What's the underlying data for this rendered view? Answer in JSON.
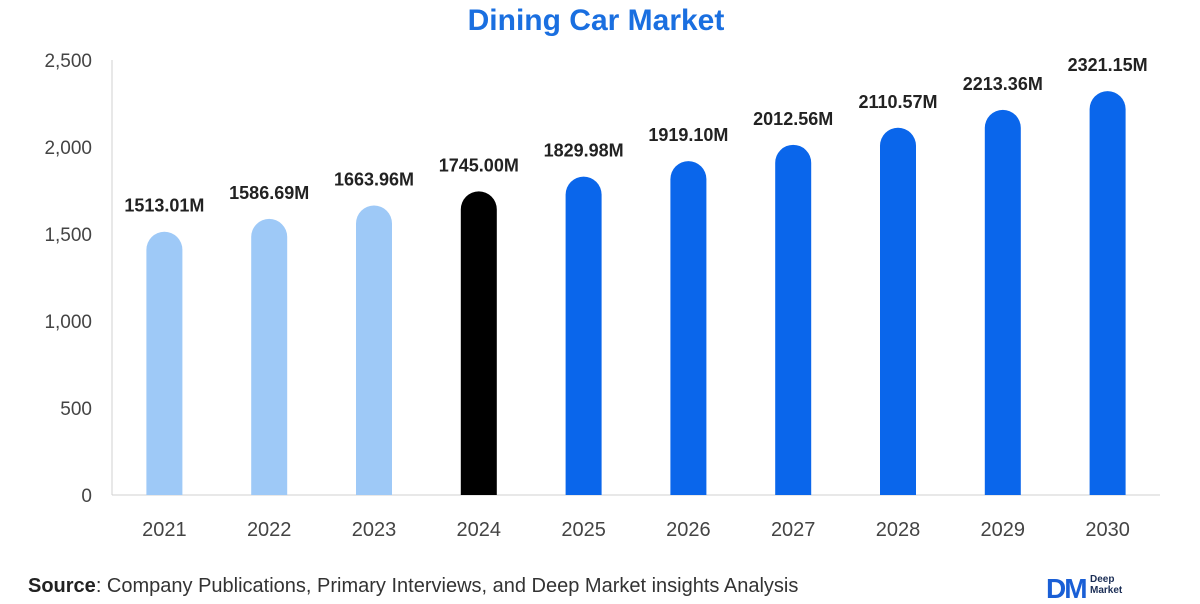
{
  "chart_data": {
    "type": "bar",
    "title": "Dining Car Market",
    "categories": [
      "2021",
      "2022",
      "2023",
      "2024",
      "2025",
      "2026",
      "2027",
      "2028",
      "2029",
      "2030"
    ],
    "values": [
      1513.01,
      1586.69,
      1663.96,
      1745.0,
      1829.98,
      1919.1,
      2012.56,
      2110.57,
      2213.36,
      2321.15
    ],
    "data_labels": [
      "1513.01M",
      "1586.69M",
      "1663.96M",
      "1745.00M",
      "1829.98M",
      "1919.10M",
      "2012.56M",
      "2110.57M",
      "2213.36M",
      "2321.15M"
    ],
    "bar_colors": [
      "#9ec9f7",
      "#9ec9f7",
      "#9ec9f7",
      "#000000",
      "#0a66eb",
      "#0a66eb",
      "#0a66eb",
      "#0a66eb",
      "#0a66eb",
      "#0a66eb"
    ],
    "y_ticks": [
      0,
      500,
      1000,
      1500,
      2000,
      2500
    ],
    "y_tick_labels": [
      "0",
      "500",
      "1,000",
      "1,500",
      "2,000",
      "2,500"
    ],
    "ylim": [
      0,
      2500
    ],
    "xlabel": "",
    "ylabel": "",
    "grid": false,
    "title_color": "#1a6fe0"
  },
  "footer": {
    "source_label": "Source",
    "source_text": ": Company Publications, Primary Interviews, and Deep Market insights Analysis"
  },
  "logo": {
    "mark": "DM",
    "line1": "Deep",
    "line2": "Market"
  }
}
